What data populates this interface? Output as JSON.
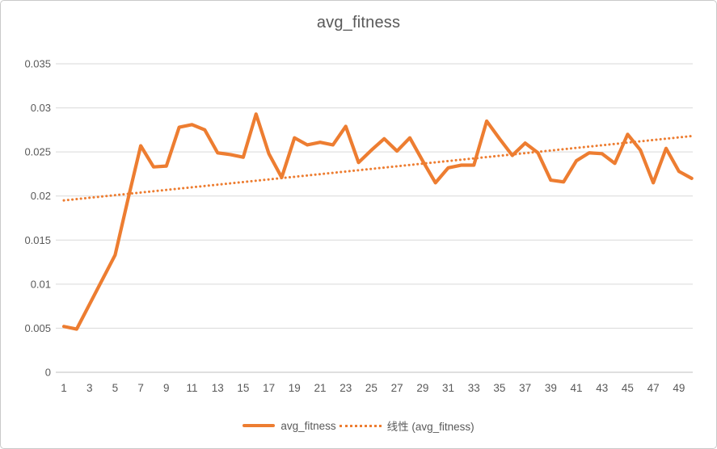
{
  "chart_data": {
    "type": "line",
    "title": "avg_fitness",
    "xlabel": "",
    "ylabel": "",
    "x_range": [
      1,
      50
    ],
    "ylim": [
      0,
      0.035
    ],
    "grid": "horizontal",
    "legend_position": "bottom",
    "xticks": [
      1,
      3,
      5,
      7,
      9,
      11,
      13,
      15,
      17,
      19,
      21,
      23,
      25,
      27,
      29,
      31,
      33,
      35,
      37,
      39,
      41,
      43,
      45,
      47,
      49
    ],
    "yticks": [
      0,
      0.005,
      0.01,
      0.015,
      0.02,
      0.025,
      0.03,
      0.035
    ],
    "ytick_labels": [
      "0",
      "0.005",
      "0.01",
      "0.015",
      "0.02",
      "0.025",
      "0.03",
      "0.035"
    ],
    "series": [
      {
        "name": "avg_fitness",
        "kind": "data",
        "line_style": "solid",
        "color": "#ED7D31",
        "values": [
          0.0052,
          0.0049,
          0.0077,
          0.0105,
          0.0133,
          0.0196,
          0.0257,
          0.0233,
          0.0234,
          0.0278,
          0.0281,
          0.0275,
          0.0249,
          0.0247,
          0.0244,
          0.0293,
          0.0248,
          0.0221,
          0.0266,
          0.0258,
          0.0261,
          0.0258,
          0.0279,
          0.0238,
          0.0252,
          0.0265,
          0.0251,
          0.0266,
          0.024,
          0.0215,
          0.0232,
          0.0235,
          0.0235,
          0.0285,
          0.0265,
          0.0246,
          0.026,
          0.0249,
          0.0218,
          0.0216,
          0.024,
          0.0249,
          0.0248,
          0.0237,
          0.027,
          0.0252,
          0.0215,
          0.0254,
          0.0228,
          0.022
        ]
      },
      {
        "name": "线性 (avg_fitness)",
        "kind": "linear_trendline",
        "line_style": "dotted",
        "color": "#ED7D31",
        "trend_start_y": 0.0195,
        "trend_end_y": 0.0268
      }
    ]
  },
  "colors": {
    "accent": "#ED7D31",
    "title_text": "#595959",
    "tick_text": "#595959",
    "gridline": "#D9D9D9",
    "axis_line": "#BFBFBF",
    "border": "#C9C9C9",
    "background": "#FFFFFF"
  }
}
